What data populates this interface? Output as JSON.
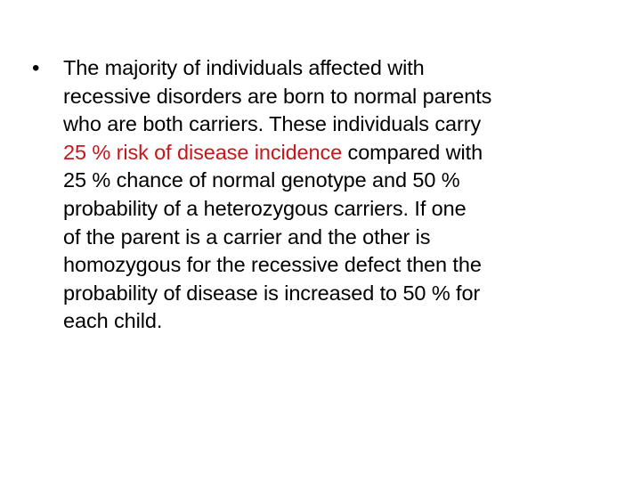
{
  "slide": {
    "bullet_symbol": "•",
    "lines": [
      {
        "segments": [
          {
            "text": "The majority of individuals affected with",
            "color": "#000000"
          }
        ]
      },
      {
        "segments": [
          {
            "text": "recessive disorders are born to normal parents",
            "color": "#000000"
          }
        ]
      },
      {
        "segments": [
          {
            "text": "who are both carriers. These individuals carry",
            "color": "#000000"
          }
        ]
      },
      {
        "segments": [
          {
            "text": "25 % risk of disease incidence",
            "color": "#c8141a"
          },
          {
            "text": " compared with",
            "color": "#000000"
          }
        ]
      },
      {
        "segments": [
          {
            "text": "25 % chance of normal genotype and 50 %",
            "color": "#000000"
          }
        ]
      },
      {
        "segments": [
          {
            "text": "probability of a heterozygous carriers. If one",
            "color": "#000000"
          }
        ]
      },
      {
        "segments": [
          {
            "text": "of the parent is a carrier and the other is",
            "color": "#000000"
          }
        ]
      },
      {
        "segments": [
          {
            "text": "homozygous for the recessive defect then the",
            "color": "#000000"
          }
        ]
      },
      {
        "segments": [
          {
            "text": "probability of disease is increased to 50 % for",
            "color": "#000000"
          }
        ]
      },
      {
        "segments": [
          {
            "text": "each child.",
            "color": "#000000"
          }
        ]
      }
    ],
    "highlight_color": "#c8141a",
    "text_color": "#000000",
    "background_color": "#ffffff"
  }
}
